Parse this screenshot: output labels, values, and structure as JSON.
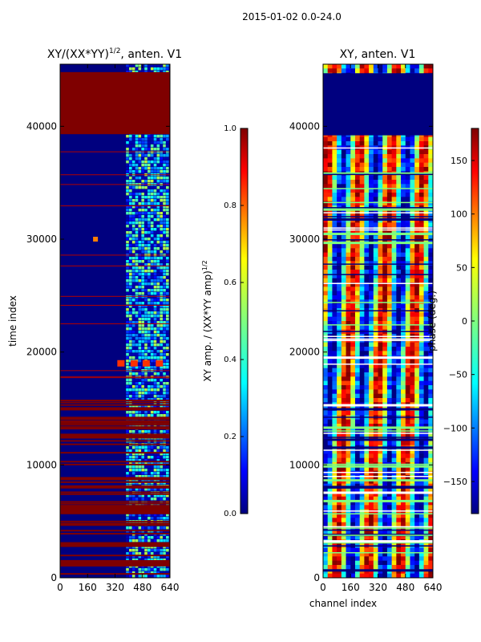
{
  "suptitle": "2015-01-02 0.0-24.0",
  "colors": {
    "jet": [
      "#00007f",
      "#0000ff",
      "#007fff",
      "#00ffff",
      "#7fff7f",
      "#ffff00",
      "#ff7f00",
      "#ff0000",
      "#7f0000"
    ],
    "axis": "#000000",
    "background": "#ffffff"
  },
  "chart_data": [
    {
      "type": "heatmap",
      "title": "XY/(XX*YY)",
      "title_sup": "1/2",
      "title_suffix": ", anten. V1",
      "xlabel": "",
      "ylabel": "time index",
      "x_ticks": [
        0,
        160,
        320,
        480,
        640
      ],
      "y_ticks": [
        0,
        10000,
        20000,
        30000,
        40000
      ],
      "xlim": [
        0,
        640
      ],
      "ylim": [
        0,
        45500
      ],
      "colorbar": {
        "label": "XY amp. / (XX*YY amp)",
        "label_sup": "1/2",
        "ticks": [
          "0.0",
          "0.2",
          "0.4",
          "0.6",
          "0.8",
          "1.0"
        ],
        "range": [
          0,
          1
        ]
      }
    },
    {
      "type": "heatmap",
      "title": "XY, anten. V1",
      "xlabel": "channel index",
      "ylabel": "",
      "x_ticks": [
        0,
        160,
        320,
        480,
        640
      ],
      "y_ticks": [
        0,
        10000,
        20000,
        30000,
        40000
      ],
      "xlim": [
        0,
        640
      ],
      "ylim": [
        0,
        45500
      ],
      "colorbar": {
        "label": "phase (deg.)",
        "ticks": [
          "150",
          "100",
          "50",
          "0",
          "−50",
          "−100",
          "−150"
        ],
        "tick_values": [
          150,
          100,
          50,
          0,
          -50,
          -100,
          -150
        ],
        "range": [
          -180,
          180
        ]
      }
    }
  ]
}
